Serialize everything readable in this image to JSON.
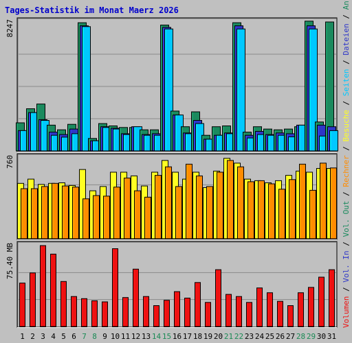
{
  "chart_data": {
    "type": "bar",
    "title": "Tages-Statistik im Monat Maerz 2026",
    "colors": {
      "background": "#c0c0c0",
      "title": "#0000cc",
      "weekday": "#000000",
      "weekend": "#1a8a55",
      "anfragen": "#1b8a5e",
      "dateien": "#2e36c8",
      "seiten": "#00c8ff",
      "besuche": "#ffff22",
      "rechner": "#ff8c00",
      "volumen": "#ee1111",
      "grid": "#8a8a8a"
    },
    "categories": [
      "1",
      "2",
      "3",
      "4",
      "5",
      "6",
      "7",
      "8",
      "9",
      "10",
      "11",
      "12",
      "13",
      "14",
      "15",
      "16",
      "17",
      "18",
      "19",
      "20",
      "21",
      "22",
      "23",
      "24",
      "25",
      "26",
      "27",
      "28",
      "29",
      "30",
      "31"
    ],
    "weekend_days": [
      "7",
      "8",
      "14",
      "15",
      "21",
      "22",
      "28",
      "29"
    ],
    "panels": [
      {
        "id": "top",
        "max_label": "8247",
        "ylim": [
          0,
          8247
        ],
        "series": [
          {
            "name": "Anfragen",
            "color_key": "anfragen",
            "values": [
              1800,
              2700,
              3000,
              1650,
              1350,
              1700,
              8200,
              800,
              1750,
              1600,
              1500,
              1500,
              1350,
              1350,
              8050,
              2550,
              1550,
              2500,
              1000,
              1550,
              1600,
              8200,
              1200,
              1550,
              1400,
              1350,
              1400,
              1550,
              8300,
              1850,
              8247
            ]
          },
          {
            "name": "Dateien",
            "color_key": "dateien",
            "values": [
              1300,
              2450,
              2000,
              1200,
              1050,
              1400,
              8000,
              650,
              1550,
              1450,
              1100,
              1550,
              1050,
              1100,
              7900,
              2300,
              1150,
              1950,
              750,
              1000,
              1150,
              8000,
              1000,
              1250,
              1050,
              1150,
              1100,
              1650,
              8000,
              1650,
              1550
            ]
          },
          {
            "name": "Seiten",
            "color_key": "seiten",
            "values": [
              1300,
              2450,
              1950,
              1000,
              880,
              1100,
              7950,
              650,
              1500,
              1400,
              1050,
              1550,
              1000,
              1000,
              7800,
              2300,
              1100,
              1750,
              750,
              1000,
              1100,
              7800,
              830,
              1050,
              1000,
              1000,
              900,
              1650,
              7800,
              950,
              1300
            ]
          }
        ]
      },
      {
        "id": "middle",
        "max_label": "760",
        "ylim": [
          0,
          760
        ],
        "series": [
          {
            "name": "Besuche",
            "color_key": "besuche",
            "values": [
              520,
              560,
              510,
              520,
              525,
              500,
              650,
              450,
              490,
              625,
              625,
              590,
              495,
              625,
              735,
              625,
              560,
              625,
              480,
              635,
              755,
              710,
              560,
              545,
              525,
              545,
              595,
              635,
              625,
              660,
              660
            ]
          },
          {
            "name": "Rechner",
            "color_key": "rechner",
            "values": [
              470,
              470,
              490,
              520,
              495,
              485,
              375,
              405,
              400,
              485,
              570,
              450,
              390,
              595,
              675,
              490,
              700,
              590,
              490,
              625,
              735,
              675,
              535,
              545,
              515,
              465,
              555,
              700,
              455,
              710,
              665
            ]
          }
        ]
      },
      {
        "id": "bottom",
        "max_label": "75.40 MB",
        "ylim": [
          0,
          75.4
        ],
        "series": [
          {
            "name": "Volumen",
            "color_key": "volumen",
            "values": [
              40.5,
              50,
              75.4,
              67.5,
              42,
              28,
              26,
              24,
              23,
              72.5,
              27,
              53.5,
              28,
              19.5,
              24.5,
              32.5,
              26.5,
              41,
              22.5,
              53,
              30,
              28,
              22.5,
              36,
              31.5,
              23.5,
              19.5,
              31.5,
              36.5,
              46,
              53
            ]
          }
        ]
      }
    ],
    "right_label": [
      {
        "text": "Volumen",
        "color_key": "volumen"
      },
      {
        "text": " / ",
        "color_key": "weekday"
      },
      {
        "text": "Vol. In",
        "color_key": "dateien"
      },
      {
        "text": " / ",
        "color_key": "weekday"
      },
      {
        "text": "Vol. Out",
        "color_key": "anfragen"
      },
      {
        "text": " / ",
        "color_key": "weekday"
      },
      {
        "text": "Rechner",
        "color_key": "rechner"
      },
      {
        "text": " / ",
        "color_key": "weekday"
      },
      {
        "text": "Besuche",
        "color_key": "besuche"
      },
      {
        "text": " / ",
        "color_key": "weekday"
      },
      {
        "text": "Seiten",
        "color_key": "seiten"
      },
      {
        "text": " / ",
        "color_key": "weekday"
      },
      {
        "text": "Dateien",
        "color_key": "dateien"
      },
      {
        "text": " / ",
        "color_key": "weekday"
      },
      {
        "text": "Anfragen",
        "color_key": "anfragen"
      }
    ]
  }
}
